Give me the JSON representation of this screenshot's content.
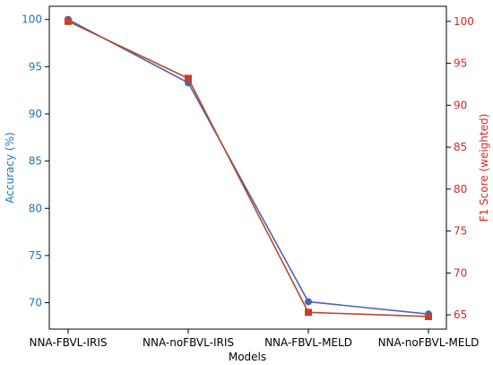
{
  "chart_data": {
    "type": "line",
    "title": "",
    "xlabel": "Models",
    "ylabel_left": "Accuracy (%)",
    "ylabel_right": "F1 Score (weighted)",
    "categories": [
      "NNA-FBVL-IRIS",
      "NNA-noFBVL-IRIS",
      "NNA-FBVL-MELD",
      "NNA-noFBVL-MELD"
    ],
    "ylim_left": [
      67.2,
      101.4
    ],
    "ylim_right": [
      63.3,
      101.8
    ],
    "yticks_left": [
      70,
      75,
      80,
      85,
      90,
      95,
      100
    ],
    "yticks_right": [
      65,
      70,
      75,
      80,
      85,
      90,
      95,
      100
    ],
    "left_axis_color": "#1f77b4",
    "right_axis_color": "#d62728",
    "grid": false,
    "series": [
      {
        "axis": "left",
        "marker": "circle",
        "color": "#4a64b4",
        "values": [
          100.0,
          93.3,
          70.1,
          68.8
        ]
      },
      {
        "axis": "right",
        "marker": "square",
        "color": "#b84a2a",
        "values": [
          100.0,
          93.2,
          65.3,
          64.8
        ]
      }
    ]
  }
}
